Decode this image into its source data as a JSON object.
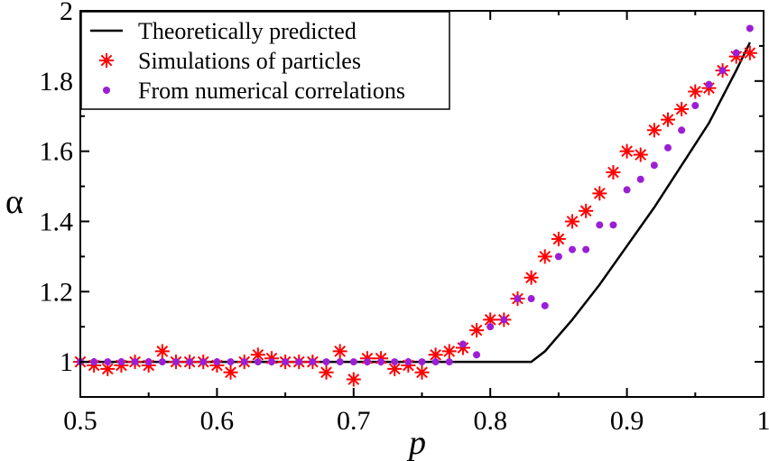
{
  "chart_data": {
    "type": "scatter",
    "title": "",
    "xlabel": "p",
    "ylabel": "α",
    "xlim": [
      0.5,
      1.0
    ],
    "ylim": [
      0.9,
      2.0
    ],
    "xticks": [
      0.5,
      0.6,
      0.7,
      0.8,
      0.9,
      1.0
    ],
    "xtick_labels": [
      "0.5",
      "0.6",
      "0.7",
      "0.8",
      "0.9",
      "1"
    ],
    "yticks": [
      1.0,
      1.2,
      1.4,
      1.6,
      1.8,
      2.0
    ],
    "ytick_labels": [
      "1",
      "1.2",
      "1.4",
      "1.6",
      "1.8",
      "2"
    ],
    "grid": false,
    "legend_position": "top-left",
    "series": [
      {
        "name": "Theoretically predicted",
        "kind": "line",
        "color": "#000000",
        "x": [
          0.5,
          0.6,
          0.7,
          0.8,
          0.83,
          0.84,
          0.86,
          0.88,
          0.9,
          0.92,
          0.94,
          0.96,
          0.98,
          0.99
        ],
        "y": [
          1.0,
          1.0,
          1.0,
          1.0,
          1.0,
          1.03,
          1.12,
          1.22,
          1.33,
          1.44,
          1.56,
          1.68,
          1.83,
          1.91
        ]
      },
      {
        "name": "Simulations of particles",
        "kind": "asterisk",
        "color": "#ff0000",
        "x": [
          0.5,
          0.51,
          0.52,
          0.53,
          0.54,
          0.55,
          0.56,
          0.57,
          0.58,
          0.59,
          0.6,
          0.61,
          0.62,
          0.63,
          0.64,
          0.65,
          0.66,
          0.67,
          0.68,
          0.69,
          0.7,
          0.71,
          0.72,
          0.73,
          0.74,
          0.75,
          0.76,
          0.77,
          0.78,
          0.79,
          0.8,
          0.81,
          0.82,
          0.83,
          0.84,
          0.85,
          0.86,
          0.87,
          0.88,
          0.89,
          0.9,
          0.91,
          0.92,
          0.93,
          0.94,
          0.95,
          0.96,
          0.97,
          0.98,
          0.99
        ],
        "y": [
          1.0,
          0.99,
          0.98,
          0.99,
          1.0,
          0.99,
          1.03,
          1.0,
          1.0,
          1.0,
          0.99,
          0.97,
          1.0,
          1.02,
          1.01,
          1.0,
          1.0,
          1.0,
          0.97,
          1.03,
          0.95,
          1.01,
          1.01,
          0.98,
          0.99,
          0.97,
          1.02,
          1.03,
          1.04,
          1.09,
          1.12,
          1.12,
          1.18,
          1.24,
          1.3,
          1.35,
          1.4,
          1.43,
          1.48,
          1.54,
          1.6,
          1.59,
          1.66,
          1.69,
          1.72,
          1.77,
          1.78,
          1.83,
          1.87,
          1.88
        ]
      },
      {
        "name": "From numerical correlations",
        "kind": "dot",
        "color": "#9b1ed6",
        "x": [
          0.5,
          0.51,
          0.52,
          0.53,
          0.54,
          0.55,
          0.56,
          0.57,
          0.58,
          0.59,
          0.6,
          0.61,
          0.62,
          0.63,
          0.64,
          0.65,
          0.66,
          0.67,
          0.68,
          0.69,
          0.7,
          0.71,
          0.72,
          0.73,
          0.74,
          0.75,
          0.76,
          0.77,
          0.78,
          0.79,
          0.8,
          0.81,
          0.82,
          0.83,
          0.84,
          0.85,
          0.86,
          0.87,
          0.88,
          0.89,
          0.9,
          0.91,
          0.92,
          0.93,
          0.94,
          0.95,
          0.96,
          0.97,
          0.98,
          0.99
        ],
        "y": [
          1.0,
          1.0,
          1.0,
          1.0,
          1.0,
          1.0,
          1.0,
          1.0,
          1.0,
          1.0,
          1.0,
          1.0,
          1.0,
          1.0,
          1.0,
          1.0,
          1.0,
          1.0,
          1.0,
          1.0,
          1.0,
          1.0,
          1.0,
          1.0,
          1.0,
          1.0,
          1.0,
          1.0,
          1.05,
          1.02,
          1.1,
          1.12,
          1.18,
          1.18,
          1.16,
          1.3,
          1.32,
          1.32,
          1.39,
          1.39,
          1.49,
          1.52,
          1.56,
          1.61,
          1.66,
          1.73,
          1.79,
          1.83,
          1.88,
          1.95
        ]
      }
    ]
  }
}
